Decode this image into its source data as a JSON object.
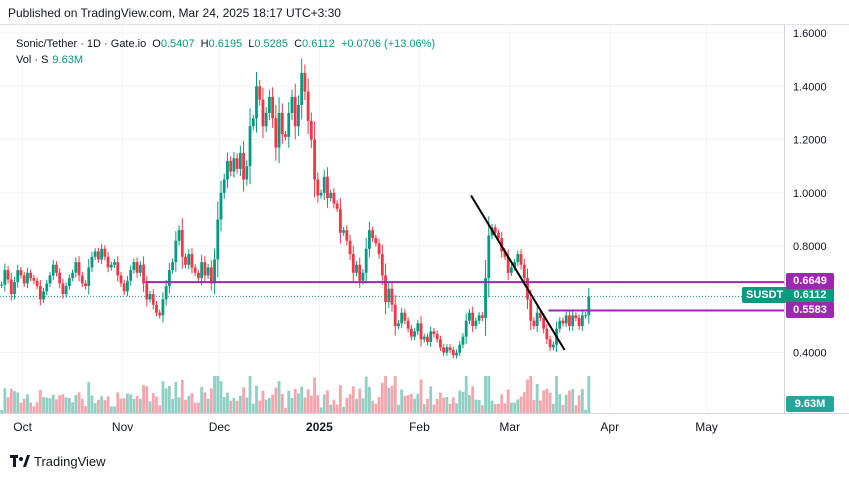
{
  "header": {
    "published": "Published on TradingView.com, Mar 24, 2025 18:17 UTC+3:30"
  },
  "legend": {
    "title": "Sonic/Tether · 1D · Gate.io",
    "open_label": "O",
    "open": "0.5407",
    "high_label": "H",
    "high": "0.6195",
    "low_label": "L",
    "low": "0.5285",
    "close_label": "C",
    "close": "0.6112",
    "change": "+0.0706 (+13.06%)",
    "volume_label": "Vol · S",
    "volume": "9.63M"
  },
  "labels": {
    "symbol": "SUSDT",
    "last_price": "0.6112",
    "upper_level": "0.6649",
    "lower_level": "0.5583",
    "volume": "9.63M"
  },
  "footer": {
    "brand": "TradingView"
  },
  "colors": {
    "up": "#089981",
    "down": "#f23645",
    "vol_up": "#8fcfc4",
    "vol_down": "#f5a6ad",
    "level_line": "#9c27b0",
    "trendline": "#000000"
  },
  "chart_data": {
    "type": "candlestick",
    "interval": "1D",
    "y_ticks": [
      "1.6000",
      "1.4000",
      "1.2000",
      "1.0000",
      "0.8000",
      "0.4000"
    ],
    "y_tick_values": [
      1.6,
      1.4,
      1.2,
      1.0,
      0.8,
      0.4
    ],
    "ylim": [
      0.35,
      1.6
    ],
    "x_ticks": [
      "Oct",
      "Nov",
      "Dec",
      "2025",
      "Feb",
      "Mar",
      "Apr",
      "May"
    ],
    "x_tick_dates": [
      "2024-10-01",
      "2024-11-01",
      "2024-12-01",
      "2025-01-01",
      "2025-02-01",
      "2025-03-01",
      "2025-04-01",
      "2025-05-01"
    ],
    "xlim": [
      "2024-09-24",
      "2025-05-25"
    ],
    "first_candle_date": "2024-09-24",
    "candle_interval_days": 1,
    "last_price": 0.6112,
    "horizontal_levels": [
      {
        "price": 0.6649,
        "from": "2024-11-08",
        "to": "2025-05-25"
      },
      {
        "price": 0.5583,
        "from": "2025-03-13",
        "to": "2025-05-25"
      }
    ],
    "trendline": {
      "from": [
        "2025-02-17",
        0.99
      ],
      "to": [
        "2025-03-18",
        0.41
      ]
    },
    "closes": [
      0.655,
      0.71,
      0.675,
      0.62,
      0.665,
      0.71,
      0.69,
      0.66,
      0.7,
      0.68,
      0.67,
      0.65,
      0.6,
      0.63,
      0.66,
      0.69,
      0.73,
      0.7,
      0.66,
      0.62,
      0.65,
      0.68,
      0.7,
      0.74,
      0.69,
      0.66,
      0.65,
      0.72,
      0.76,
      0.78,
      0.75,
      0.79,
      0.76,
      0.72,
      0.73,
      0.74,
      0.69,
      0.66,
      0.63,
      0.67,
      0.71,
      0.74,
      0.7,
      0.73,
      0.66,
      0.6,
      0.62,
      0.58,
      0.55,
      0.54,
      0.6,
      0.65,
      0.71,
      0.74,
      0.82,
      0.86,
      0.76,
      0.73,
      0.77,
      0.72,
      0.7,
      0.68,
      0.74,
      0.69,
      0.72,
      0.66,
      0.75,
      0.9,
      1.0,
      1.05,
      1.12,
      1.08,
      1.13,
      1.09,
      1.15,
      1.05,
      1.1,
      1.25,
      1.28,
      1.4,
      1.35,
      1.25,
      1.3,
      1.36,
      1.28,
      1.17,
      1.3,
      1.22,
      1.21,
      1.3,
      1.36,
      1.25,
      1.33,
      1.45,
      1.38,
      1.27,
      1.2,
      1.05,
      0.99,
      1.0,
      1.06,
      0.98,
      1.0,
      0.96,
      0.94,
      0.85,
      0.86,
      0.82,
      0.77,
      0.7,
      0.73,
      0.67,
      0.7,
      0.79,
      0.86,
      0.83,
      0.81,
      0.77,
      0.69,
      0.59,
      0.64,
      0.58,
      0.5,
      0.51,
      0.55,
      0.52,
      0.49,
      0.46,
      0.48,
      0.51,
      0.45,
      0.46,
      0.44,
      0.48,
      0.47,
      0.45,
      0.42,
      0.4,
      0.42,
      0.41,
      0.39,
      0.4,
      0.43,
      0.46,
      0.52,
      0.55,
      0.5,
      0.52,
      0.54,
      0.53,
      0.68,
      0.84,
      0.87,
      0.85,
      0.83,
      0.78,
      0.76,
      0.7,
      0.72,
      0.74,
      0.77,
      0.73,
      0.68,
      0.6,
      0.52,
      0.5,
      0.55,
      0.53,
      0.49,
      0.45,
      0.42,
      0.43,
      0.49,
      0.52,
      0.51,
      0.54,
      0.5,
      0.54,
      0.53,
      0.5,
      0.54,
      0.5407,
      0.6112
    ]
  }
}
